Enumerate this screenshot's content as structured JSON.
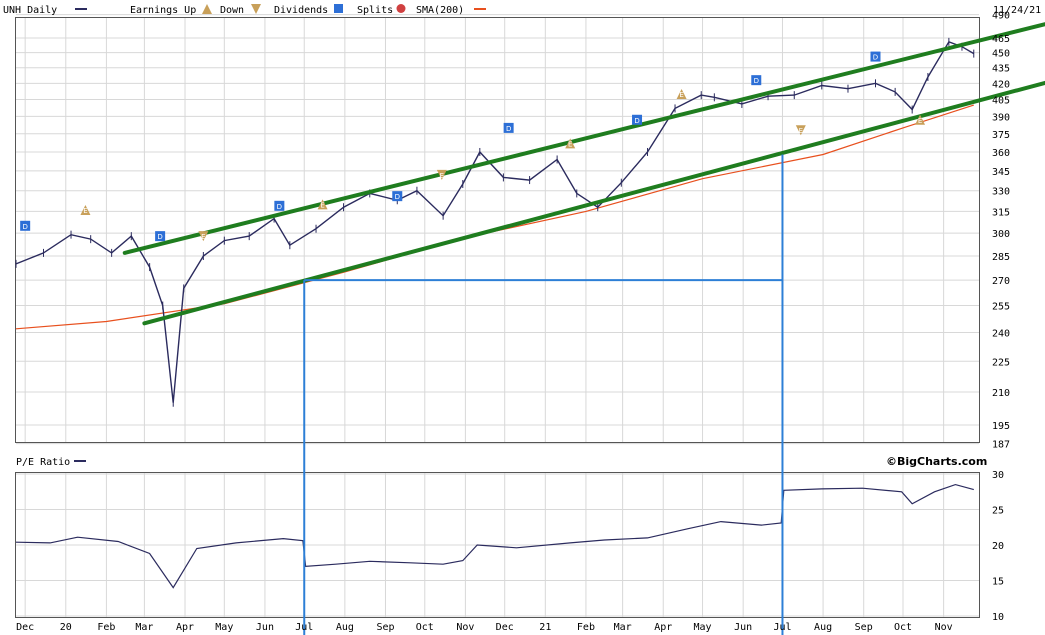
{
  "chart_data": [
    {
      "type": "line",
      "title": "UNH Daily",
      "subtitle": "",
      "date_label": "11/24/21",
      "legend": [
        {
          "name": "UNH Daily",
          "color": "#2b2b5e",
          "marker": "bar"
        },
        {
          "name": "Earnings Up",
          "color": "#c8a05a",
          "marker": "triangle-up"
        },
        {
          "name": "Down",
          "color": "#c8a05a",
          "marker": "triangle-down"
        },
        {
          "name": "Dividends",
          "color": "#2d6fd6",
          "marker": "D"
        },
        {
          "name": "Splits",
          "color": "#d04040",
          "marker": "S"
        },
        {
          "name": "SMA(200)",
          "color": "#e8501e",
          "marker": "line"
        }
      ],
      "x_tick_labels": [
        "Dec",
        "20",
        "Feb",
        "Mar",
        "Apr",
        "May",
        "Jun",
        "Jul",
        "Aug",
        "Sep",
        "Oct",
        "Nov",
        "Dec",
        "21",
        "Feb",
        "Mar",
        "Apr",
        "May",
        "Jun",
        "Jul",
        "Aug",
        "Sep",
        "Oct",
        "Nov"
      ],
      "y_tick_labels": [
        490,
        465,
        450,
        435,
        420,
        405,
        390,
        375,
        360,
        345,
        330,
        315,
        300,
        285,
        270,
        255,
        240,
        225,
        210,
        195,
        187
      ],
      "ylim": [
        187,
        490
      ],
      "y_scale": "log",
      "price_series": {
        "name": "UNH",
        "x": [
          "2019-11-24",
          "2019-12-15",
          "2020-01-05",
          "2020-01-20",
          "2020-02-05",
          "2020-02-20",
          "2020-03-05",
          "2020-03-15",
          "2020-03-23",
          "2020-03-31",
          "2020-04-15",
          "2020-05-01",
          "2020-05-20",
          "2020-06-08",
          "2020-06-20",
          "2020-07-10",
          "2020-07-31",
          "2020-08-20",
          "2020-09-10",
          "2020-09-25",
          "2020-10-15",
          "2020-10-30",
          "2020-11-12",
          "2020-11-30",
          "2020-12-20",
          "2021-01-10",
          "2021-01-25",
          "2021-02-10",
          "2021-02-28",
          "2021-03-20",
          "2021-04-10",
          "2021-04-30",
          "2021-05-10",
          "2021-05-31",
          "2021-06-20",
          "2021-07-10",
          "2021-07-31",
          "2021-08-20",
          "2021-09-10",
          "2021-09-25",
          "2021-10-08",
          "2021-10-20",
          "2021-11-05",
          "2021-11-15",
          "2021-11-24"
        ],
        "values": [
          280,
          287,
          299,
          296,
          287,
          298,
          278,
          255,
          205,
          265,
          285,
          295,
          298,
          310,
          292,
          303,
          318,
          328,
          323,
          330,
          312,
          335,
          360,
          340,
          338,
          354,
          328,
          318,
          336,
          360,
          397,
          409,
          407,
          401,
          408,
          409,
          418,
          415,
          420,
          412,
          396,
          426,
          461,
          456,
          449
        ]
      },
      "sma_series": {
        "name": "SMA(200)",
        "x": [
          "2019-11-24",
          "2020-02-01",
          "2020-05-01",
          "2020-08-01",
          "2020-11-01",
          "2021-02-01",
          "2021-05-01",
          "2021-08-01",
          "2021-10-01",
          "2021-11-24"
        ],
        "values": [
          242,
          246,
          256,
          275,
          297,
          315,
          339,
          358,
          380,
          400
        ]
      },
      "trend_channels": [
        {
          "name": "upper",
          "x": [
            "2020-02-15",
            "2021-11-30"
          ],
          "values": [
            287,
            470
          ],
          "color": "#1f7d1f"
        },
        {
          "name": "lower",
          "x": [
            "2020-03-01",
            "2021-11-30"
          ],
          "values": [
            245,
            412
          ],
          "color": "#1f7d1f"
        }
      ],
      "events": [
        {
          "date": "2019-12-01",
          "price": 305,
          "type": "Dividends",
          "label": "D"
        },
        {
          "date": "2020-01-16",
          "price": 316,
          "type": "Earnings Up",
          "label": "E"
        },
        {
          "date": "2020-03-13",
          "price": 298,
          "type": "Dividends",
          "label": "D"
        },
        {
          "date": "2020-04-15",
          "price": 298,
          "type": "Earnings Down",
          "label": "E"
        },
        {
          "date": "2020-06-12",
          "price": 319,
          "type": "Dividends",
          "label": "D"
        },
        {
          "date": "2020-07-15",
          "price": 320,
          "type": "Earnings Up",
          "label": "E"
        },
        {
          "date": "2020-09-10",
          "price": 326,
          "type": "Dividends",
          "label": "D"
        },
        {
          "date": "2020-10-14",
          "price": 342,
          "type": "Earnings Down",
          "label": "E"
        },
        {
          "date": "2020-12-04",
          "price": 380,
          "type": "Dividends",
          "label": "D"
        },
        {
          "date": "2021-01-20",
          "price": 367,
          "type": "Earnings Up",
          "label": "E"
        },
        {
          "date": "2021-03-12",
          "price": 387,
          "type": "Dividends",
          "label": "D"
        },
        {
          "date": "2021-04-15",
          "price": 410,
          "type": "Earnings Up",
          "label": "E"
        },
        {
          "date": "2021-06-11",
          "price": 423,
          "type": "Dividends",
          "label": "D"
        },
        {
          "date": "2021-07-15",
          "price": 378,
          "type": "Earnings Down",
          "label": "E"
        },
        {
          "date": "2021-09-10",
          "price": 446,
          "type": "Dividends",
          "label": "D"
        },
        {
          "date": "2021-10-14",
          "price": 387,
          "type": "Earnings Up",
          "label": "E"
        }
      ],
      "annotations": {
        "horizontal_line": {
          "value": 270,
          "from": "2020-07-01",
          "to": "2021-07-01",
          "color": "#2d7fd6"
        },
        "vertical_lines": [
          {
            "date": "2020-07-01",
            "color": "#2d7fd6"
          },
          {
            "date": "2021-07-01",
            "color": "#2d7fd6"
          }
        ]
      },
      "grid": true
    },
    {
      "type": "line",
      "title": "P/E Ratio",
      "brand": "©BigCharts.com",
      "ylim": [
        10,
        30
      ],
      "y_tick_labels": [
        30,
        25,
        20,
        15,
        10
      ],
      "series": [
        {
          "name": "P/E Ratio",
          "x": [
            "2019-11-24",
            "2019-12-20",
            "2020-01-10",
            "2020-02-10",
            "2020-03-05",
            "2020-03-23",
            "2020-04-10",
            "2020-05-10",
            "2020-06-15",
            "2020-06-30",
            "2020-07-02",
            "2020-07-25",
            "2020-08-20",
            "2020-09-20",
            "2020-10-15",
            "2020-10-30",
            "2020-11-10",
            "2020-12-10",
            "2021-01-20",
            "2021-02-15",
            "2021-03-20",
            "2021-04-20",
            "2021-05-15",
            "2021-06-15",
            "2021-06-30",
            "2021-07-02",
            "2021-07-31",
            "2021-08-31",
            "2021-09-30",
            "2021-10-08",
            "2021-10-25",
            "2021-11-10",
            "2021-11-24"
          ],
          "values": [
            20.4,
            20.3,
            21.1,
            20.5,
            18.8,
            14.0,
            19.5,
            20.3,
            20.9,
            20.6,
            17.0,
            17.3,
            17.7,
            17.5,
            17.3,
            17.8,
            20.0,
            19.6,
            20.3,
            20.7,
            21.0,
            22.3,
            23.3,
            22.8,
            23.1,
            27.7,
            27.9,
            28.0,
            27.5,
            25.8,
            27.5,
            28.5,
            27.8
          ]
        }
      ],
      "annotations": {
        "vertical_lines": [
          {
            "date": "2020-07-01",
            "color": "#2d7fd6"
          },
          {
            "date": "2021-07-01",
            "color": "#2d7fd6"
          }
        ]
      },
      "grid": true
    }
  ]
}
